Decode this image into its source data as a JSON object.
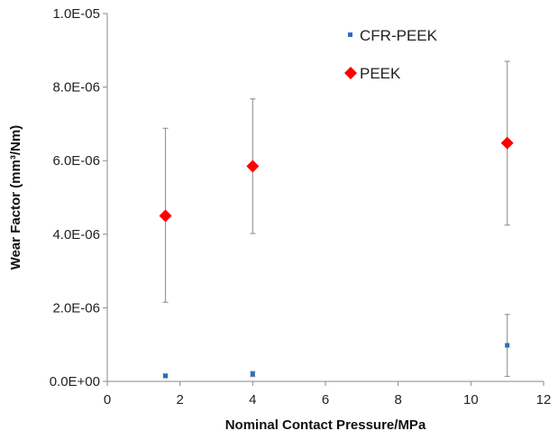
{
  "chart_data": {
    "type": "scatter",
    "xlabel": "Nominal Contact Pressure/MPa",
    "ylabel": "Wear Factor (mm³/Nm)",
    "xlim": [
      0,
      12
    ],
    "ylim": [
      0,
      1e-05
    ],
    "x_ticks": [
      0,
      2,
      4,
      6,
      8,
      10,
      12
    ],
    "y_ticks": [
      0,
      2e-06,
      4e-06,
      6e-06,
      8e-06,
      1e-05
    ],
    "x_tick_labels": [
      "0",
      "2",
      "4",
      "6",
      "8",
      "10",
      "12"
    ],
    "y_tick_labels": [
      "0.0E+00",
      "2.0E-06",
      "4.0E-06",
      "6.0E-06",
      "8.0E-06",
      "1.0E-05"
    ],
    "grid": false,
    "legend_position": "top-right",
    "series": [
      {
        "name": "CFR-PEEK",
        "marker": "square",
        "color": "#2a6ebb",
        "x": [
          1.6,
          4,
          11
        ],
        "y": [
          1.5e-07,
          2e-07,
          9.8e-07
        ],
        "error_low": [
          1e-07,
          1.3e-07,
          1.35e-07
        ],
        "error_high": [
          2e-07,
          2.7e-07,
          1.82e-06
        ]
      },
      {
        "name": "PEEK",
        "marker": "diamond",
        "color": "#ff0000",
        "x": [
          1.6,
          4,
          11
        ],
        "y": [
          4.5e-06,
          5.85e-06,
          6.48e-06
        ],
        "error_low": [
          2.15e-06,
          4.02e-06,
          4.25e-06
        ],
        "error_high": [
          6.88e-06,
          7.68e-06,
          8.7e-06
        ]
      }
    ]
  }
}
